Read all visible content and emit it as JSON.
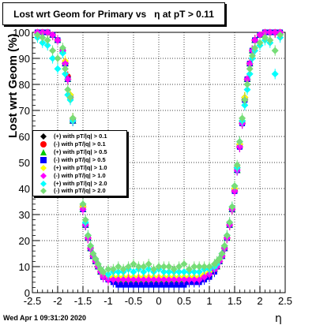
{
  "title": "Lost wrt Geom for Primary vs   η at pT > 0.11",
  "timestamp": "Wed Apr  1 09:31:20 2020",
  "chart_data": {
    "type": "scatter",
    "xlabel": "η",
    "ylabel": "Lost wrt Geom (%)",
    "xlim": [
      -2.5,
      2.5
    ],
    "ylim": [
      0,
      100
    ],
    "xticks": [
      "-2.5",
      "-2",
      "-1.5",
      "-1",
      "-0.5",
      "0",
      "0.5",
      "1",
      "1.5",
      "2",
      "2.5"
    ],
    "yticks": [
      "0",
      "10",
      "20",
      "30",
      "40",
      "50",
      "60",
      "70",
      "80",
      "90",
      "100"
    ],
    "grid": true,
    "legend_position": "left-middle",
    "x": [
      -2.4,
      -2.3,
      -2.2,
      -2.1,
      -2.0,
      -1.9,
      -1.85,
      -1.8,
      -1.75,
      -1.7,
      -1.65,
      -1.6,
      -1.55,
      -1.5,
      -1.45,
      -1.4,
      -1.35,
      -1.3,
      -1.25,
      -1.2,
      -1.15,
      -1.1,
      -1.0,
      -0.9,
      -0.8,
      -0.7,
      -0.6,
      -0.5,
      -0.4,
      -0.3,
      -0.2,
      -0.1,
      0.0,
      0.1,
      0.2,
      0.3,
      0.4,
      0.5,
      0.6,
      0.7,
      0.8,
      0.9,
      1.0,
      1.1,
      1.15,
      1.2,
      1.25,
      1.3,
      1.35,
      1.4,
      1.45,
      1.5,
      1.55,
      1.6,
      1.65,
      1.7,
      1.75,
      1.8,
      1.85,
      1.9,
      2.0,
      2.1,
      2.2,
      2.3,
      2.4
    ],
    "series": [
      {
        "name": "(+) with pT/|q| > 0.1",
        "color": "#000000",
        "marker": "diamond",
        "values": [
          100,
          100,
          100,
          99,
          97,
          93,
          88,
          82,
          76,
          67,
          57,
          48,
          40,
          33,
          26,
          21,
          17,
          14,
          12,
          10,
          8,
          7,
          5,
          5,
          4,
          4,
          4,
          4,
          4,
          4,
          4,
          4,
          4,
          4,
          4,
          4,
          4,
          4,
          5,
          5,
          5,
          6,
          7,
          9,
          10,
          12,
          14,
          17,
          21,
          26,
          32,
          40,
          48,
          57,
          66,
          75,
          82,
          88,
          93,
          97,
          99,
          100,
          100,
          100,
          100
        ]
      },
      {
        "name": "(-) with pT/|q| > 0.1",
        "color": "#ff0000",
        "marker": "circle",
        "values": [
          100,
          100,
          100,
          99,
          97,
          93,
          88,
          83,
          75,
          66,
          56,
          48,
          39,
          33,
          26,
          21,
          17,
          14,
          12,
          10,
          8,
          7,
          5,
          5,
          4,
          4,
          4,
          4,
          4,
          4,
          4,
          4,
          4,
          4,
          4,
          4,
          4,
          4,
          5,
          5,
          5,
          6,
          7,
          9,
          10,
          12,
          14,
          17,
          21,
          26,
          32,
          39,
          48,
          56,
          65,
          74,
          82,
          88,
          93,
          97,
          99,
          100,
          100,
          100,
          100
        ]
      },
      {
        "name": "(+) with pT/|q| > 0.5",
        "color": "#00cc00",
        "marker": "triangle",
        "values": [
          100,
          100,
          100,
          99,
          97,
          93,
          88,
          82,
          76,
          66,
          57,
          47,
          40,
          32,
          26,
          21,
          17,
          14,
          12,
          10,
          8,
          7,
          6,
          5,
          5,
          5,
          5,
          5,
          5,
          5,
          5,
          5,
          5,
          5,
          5,
          5,
          5,
          5,
          5,
          5,
          6,
          6,
          7,
          9,
          10,
          12,
          14,
          17,
          21,
          26,
          32,
          40,
          47,
          57,
          66,
          75,
          82,
          88,
          93,
          97,
          99,
          100,
          100,
          100,
          100
        ]
      },
      {
        "name": "(-) with pT/|q| > 0.5",
        "color": "#0000ff",
        "marker": "square",
        "values": [
          100,
          100,
          100,
          99,
          97,
          93,
          88,
          82,
          75,
          66,
          56,
          47,
          39,
          32,
          26,
          21,
          17,
          14,
          12,
          10,
          8,
          6,
          5,
          4,
          3,
          3,
          3,
          3,
          3,
          3,
          3,
          3,
          3,
          3,
          3,
          3,
          3,
          3,
          4,
          4,
          4,
          5,
          6,
          8,
          10,
          12,
          14,
          17,
          21,
          26,
          32,
          39,
          47,
          56,
          65,
          74,
          82,
          88,
          93,
          97,
          99,
          100,
          100,
          100,
          100
        ]
      },
      {
        "name": "(+) with pT/|q| > 1.0",
        "color": "#ffff00",
        "marker": "diamond",
        "values": [
          100,
          100,
          100,
          99,
          97,
          93,
          89,
          82,
          76,
          67,
          57,
          48,
          40,
          33,
          27,
          21,
          17,
          14,
          12,
          10,
          8,
          7,
          6,
          6,
          6,
          6,
          6,
          6,
          6,
          6,
          6,
          6,
          6,
          6,
          6,
          6,
          6,
          6,
          6,
          6,
          6,
          7,
          8,
          9,
          10,
          12,
          14,
          18,
          21,
          26,
          32,
          40,
          48,
          57,
          66,
          75,
          82,
          88,
          93,
          97,
          99,
          100,
          100,
          100,
          100
        ]
      },
      {
        "name": "(-) with pT/|q| > 1.0",
        "color": "#ff00ff",
        "marker": "diamond",
        "values": [
          100,
          100,
          100,
          99,
          97,
          93,
          88,
          82,
          75,
          66,
          56,
          47,
          39,
          32,
          26,
          21,
          17,
          14,
          12,
          10,
          8,
          6,
          5,
          5,
          5,
          5,
          5,
          5,
          5,
          5,
          5,
          5,
          5,
          5,
          5,
          5,
          5,
          5,
          5,
          5,
          5,
          6,
          7,
          9,
          10,
          12,
          14,
          17,
          21,
          26,
          32,
          39,
          47,
          56,
          65,
          74,
          82,
          88,
          93,
          97,
          99,
          100,
          100,
          100,
          100
        ]
      },
      {
        "name": "(+) with pT/|q| > 2.0",
        "color": "#00ffff",
        "marker": "diamond",
        "values": [
          98,
          96,
          95,
          90,
          86,
          92,
          84,
          76,
          74,
          66,
          58,
          48,
          41,
          34,
          27,
          22,
          18,
          15,
          13,
          11,
          9,
          8,
          7,
          8,
          8,
          8,
          9,
          8,
          9,
          8,
          9,
          8,
          9,
          8,
          8,
          8,
          8,
          8,
          8,
          8,
          8,
          9,
          9,
          10,
          11,
          13,
          15,
          18,
          22,
          27,
          33,
          41,
          48,
          58,
          66,
          72,
          78,
          84,
          90,
          93,
          95,
          97,
          96,
          84,
          98
        ]
      },
      {
        "name": "(-) with pT/|q| > 2.0",
        "color": "#77dd77",
        "marker": "diamond",
        "values": [
          99,
          98,
          97,
          93,
          90,
          94,
          86,
          78,
          75,
          67,
          58,
          49,
          41,
          34,
          28,
          22,
          18,
          15,
          13,
          11,
          9,
          8,
          9,
          9,
          10,
          9,
          10,
          11,
          10,
          10,
          11,
          9,
          10,
          10,
          10,
          9,
          10,
          11,
          9,
          10,
          10,
          10,
          10,
          11,
          12,
          13,
          15,
          18,
          22,
          27,
          33,
          41,
          49,
          58,
          67,
          74,
          80,
          86,
          91,
          94,
          96,
          98,
          97,
          93,
          99
        ]
      }
    ]
  }
}
